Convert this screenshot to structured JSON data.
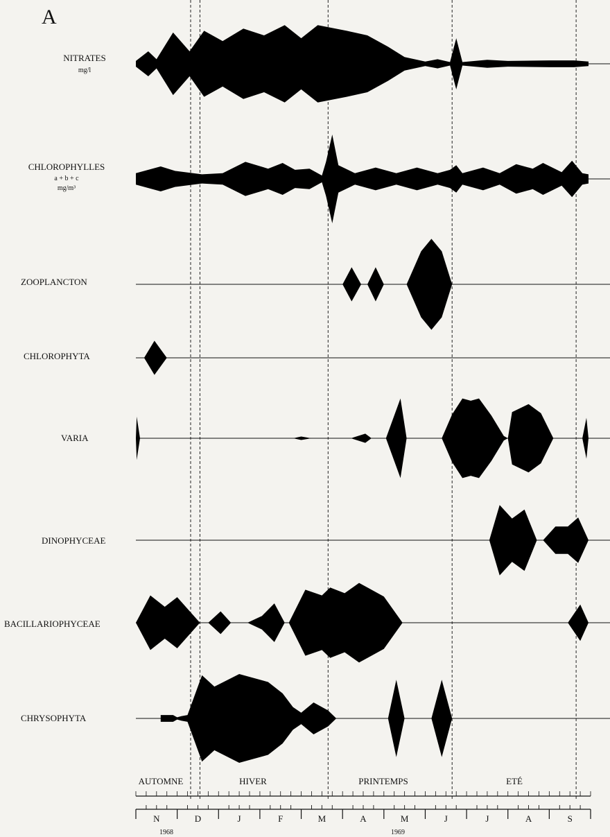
{
  "chart_data": {
    "type": "area",
    "panel_label": "A",
    "description_kind": "kite diagram",
    "ink_color": "#000000",
    "background_color": "#f4f3ef",
    "time_axis": {
      "months": [
        "N",
        "D",
        "J",
        "F",
        "M",
        "A",
        "M",
        "J",
        "J",
        "A",
        "S"
      ],
      "years": [
        {
          "label": "1968",
          "month_index": 1
        },
        {
          "label": "1969",
          "month_index": 6
        }
      ],
      "seasons": [
        {
          "label": "AUTOMNE",
          "start": 0,
          "end": 1.55
        },
        {
          "label": "HIVER",
          "start": 1.55,
          "end": 4.65
        },
        {
          "label": "PRINTEMPS",
          "start": 4.65,
          "end": 7.65
        },
        {
          "label": "ETE",
          "start": 7.65,
          "end": 10.65
        }
      ],
      "range_months": [
        0,
        11
      ],
      "divider_months": [
        1.55,
        4.65,
        7.65,
        10.65
      ]
    },
    "series": [
      {
        "name": "NITRATES",
        "unit": "mg/l",
        "points": [
          [
            0,
            5
          ],
          [
            0.3,
            22
          ],
          [
            0.5,
            8
          ],
          [
            0.9,
            55
          ],
          [
            1.3,
            22
          ],
          [
            1.65,
            58
          ],
          [
            2.1,
            40
          ],
          [
            2.6,
            62
          ],
          [
            3.1,
            50
          ],
          [
            3.6,
            68
          ],
          [
            4.0,
            45
          ],
          [
            4.4,
            68
          ],
          [
            5.1,
            58
          ],
          [
            5.6,
            50
          ],
          [
            6.1,
            30
          ],
          [
            6.5,
            12
          ],
          [
            7.0,
            4
          ],
          [
            7.3,
            8
          ],
          [
            7.6,
            3
          ],
          [
            7.75,
            45
          ],
          [
            7.9,
            3
          ],
          [
            8.5,
            7
          ],
          [
            9.0,
            5
          ],
          [
            10.0,
            6
          ],
          [
            10.6,
            6
          ],
          [
            10.95,
            4
          ]
        ]
      },
      {
        "name": "CHLOROPHYLLES",
        "unit_lines": [
          "a + b + c",
          "mg/m³"
        ],
        "points": [
          [
            0,
            10
          ],
          [
            0.6,
            22
          ],
          [
            0.95,
            14
          ],
          [
            1.6,
            8
          ],
          [
            2.1,
            10
          ],
          [
            2.65,
            30
          ],
          [
            3.2,
            18
          ],
          [
            3.55,
            28
          ],
          [
            3.85,
            16
          ],
          [
            4.2,
            18
          ],
          [
            4.5,
            6
          ],
          [
            4.6,
            30
          ],
          [
            4.75,
            78
          ],
          [
            4.9,
            24
          ],
          [
            5.3,
            10
          ],
          [
            5.8,
            20
          ],
          [
            6.3,
            10
          ],
          [
            6.8,
            20
          ],
          [
            7.3,
            10
          ],
          [
            7.6,
            16
          ],
          [
            7.75,
            24
          ],
          [
            7.9,
            10
          ],
          [
            8.4,
            20
          ],
          [
            8.8,
            10
          ],
          [
            9.2,
            26
          ],
          [
            9.6,
            18
          ],
          [
            9.85,
            28
          ],
          [
            10.3,
            12
          ],
          [
            10.55,
            32
          ],
          [
            10.8,
            10
          ],
          [
            10.95,
            8
          ]
        ]
      },
      {
        "name": "ZOOPLANCTON",
        "points": [
          [
            5.0,
            0
          ],
          [
            5.22,
            30
          ],
          [
            5.45,
            0
          ],
          [
            5.6,
            0
          ],
          [
            5.8,
            30
          ],
          [
            6.0,
            0
          ],
          [
            6.55,
            0
          ],
          [
            6.9,
            58
          ],
          [
            7.15,
            80
          ],
          [
            7.4,
            58
          ],
          [
            7.65,
            0
          ]
        ]
      },
      {
        "name": "CHLOROPHYTA",
        "points": [
          [
            0.2,
            0
          ],
          [
            0.45,
            30
          ],
          [
            0.75,
            0
          ]
        ]
      },
      {
        "name": "VARIA",
        "points": [
          [
            0,
            0
          ],
          [
            0.02,
            38
          ],
          [
            0.1,
            0
          ],
          [
            3.8,
            0
          ],
          [
            4.0,
            3
          ],
          [
            4.25,
            0
          ],
          [
            5.2,
            0
          ],
          [
            5.55,
            8
          ],
          [
            5.7,
            0
          ],
          [
            6.05,
            0
          ],
          [
            6.4,
            70
          ],
          [
            6.55,
            0
          ],
          [
            7.4,
            0
          ],
          [
            7.65,
            42
          ],
          [
            7.9,
            70
          ],
          [
            8.1,
            66
          ],
          [
            8.3,
            70
          ],
          [
            8.6,
            40
          ],
          [
            8.9,
            4
          ],
          [
            9.0,
            0
          ],
          [
            9.1,
            46
          ],
          [
            9.5,
            60
          ],
          [
            9.8,
            44
          ],
          [
            10.1,
            0
          ],
          [
            10.8,
            0
          ],
          [
            10.9,
            36
          ],
          [
            10.95,
            0
          ]
        ]
      },
      {
        "name": "DINOPHYCEAE",
        "points": [
          [
            8.55,
            0
          ],
          [
            8.8,
            62
          ],
          [
            9.1,
            38
          ],
          [
            9.4,
            54
          ],
          [
            9.7,
            0
          ],
          [
            9.85,
            0
          ],
          [
            10.15,
            24
          ],
          [
            10.45,
            24
          ],
          [
            10.7,
            40
          ],
          [
            10.95,
            0
          ]
        ]
      },
      {
        "name": "BACILLARIOPHYCEAE",
        "points": [
          [
            0,
            0
          ],
          [
            0.35,
            48
          ],
          [
            0.7,
            28
          ],
          [
            1.0,
            45
          ],
          [
            1.55,
            0
          ],
          [
            1.75,
            0
          ],
          [
            2.05,
            20
          ],
          [
            2.3,
            0
          ],
          [
            2.7,
            0
          ],
          [
            3.05,
            12
          ],
          [
            3.35,
            34
          ],
          [
            3.6,
            0
          ],
          [
            3.7,
            0
          ],
          [
            4.1,
            58
          ],
          [
            4.5,
            48
          ],
          [
            4.7,
            62
          ],
          [
            5.05,
            52
          ],
          [
            5.4,
            70
          ],
          [
            5.65,
            60
          ],
          [
            6.0,
            46
          ],
          [
            6.45,
            0
          ],
          [
            10.45,
            0
          ],
          [
            10.75,
            32
          ],
          [
            10.95,
            0
          ]
        ]
      },
      {
        "name": "CHRYSOPHYTA",
        "points": [
          [
            0.6,
            6
          ],
          [
            0.9,
            6
          ],
          [
            1.0,
            2
          ],
          [
            1.1,
            4
          ],
          [
            1.25,
            6
          ],
          [
            1.6,
            76
          ],
          [
            1.9,
            56
          ],
          [
            2.5,
            78
          ],
          [
            3.2,
            64
          ],
          [
            3.55,
            44
          ],
          [
            3.8,
            20
          ],
          [
            4.0,
            10
          ],
          [
            4.3,
            28
          ],
          [
            4.65,
            14
          ],
          [
            4.85,
            0
          ],
          [
            6.1,
            0
          ],
          [
            6.3,
            68
          ],
          [
            6.5,
            0
          ],
          [
            7.15,
            0
          ],
          [
            7.4,
            68
          ],
          [
            7.65,
            0
          ]
        ]
      }
    ],
    "season_labels_text": [
      "AUTOMNE",
      "HIVER",
      "PRINTEMPS",
      "ETE"
    ]
  },
  "labels": {
    "panel": "A",
    "nitrates": "NITRATES",
    "nitrates_unit": "mg/l",
    "chloro": "CHLOROPHYLLES",
    "chloro_unit1": "a + b + c",
    "chloro_unit2": "mg/m³",
    "zoo": "ZOOPLANCTON",
    "chlorophyta": "CHLOROPHYTA",
    "varia": "VARIA",
    "dino": "DINOPHYCEAE",
    "bacil": "BACILLARIOPHYCEAE",
    "chryso": "CHRYSOPHYTA",
    "season_automne": "AUTOMNE",
    "season_hiver": "HIVER",
    "season_printemps": "PRINTEMPS",
    "season_ete": "ETÉ",
    "year_1968": "1968",
    "year_1969": "1969"
  }
}
